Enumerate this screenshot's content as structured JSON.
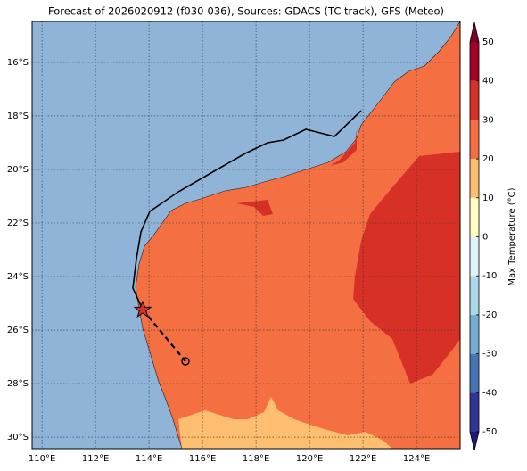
{
  "map": {
    "title": "Forecast of 2026020912 (f030-036), Sources: GDACS (TC track), GFS (Meteo)",
    "lonlim": [
      109.63,
      125.63
    ],
    "latlim": [
      -30.43,
      -14.47
    ],
    "lon_ticks": [
      {
        "value": 110,
        "label": "110°E"
      },
      {
        "value": 112,
        "label": "112°E"
      },
      {
        "value": 114,
        "label": "114°E"
      },
      {
        "value": 116,
        "label": "116°E"
      },
      {
        "value": 118,
        "label": "118°E"
      },
      {
        "value": 120,
        "label": "120°E"
      },
      {
        "value": 122,
        "label": "122°E"
      },
      {
        "value": 124,
        "label": "124°E"
      }
    ],
    "lat_ticks": [
      {
        "value": -16,
        "label": "16°S"
      },
      {
        "value": -18,
        "label": "18°S"
      },
      {
        "value": -20,
        "label": "20°S"
      },
      {
        "value": -22,
        "label": "22°S"
      },
      {
        "value": -24,
        "label": "24°S"
      },
      {
        "value": -26,
        "label": "26°S"
      },
      {
        "value": -28,
        "label": "28°S"
      },
      {
        "value": -30,
        "label": "30°S"
      }
    ],
    "grid": true,
    "colorbar": {
      "label": "Max Temperature (°C)",
      "lim": [
        -50,
        50
      ],
      "ticks": [
        -50,
        -40,
        -30,
        -20,
        -10,
        0,
        10,
        20,
        30,
        40,
        50
      ],
      "colors": [
        "#313695",
        "#4575b4",
        "#74add1",
        "#abd9e9",
        "#e0f3f8",
        "#ffffbf",
        "#fdbf6f",
        "#f46d43",
        "#d73027",
        "#a50026"
      ],
      "under_color": "#1f1a7a",
      "over_color": "#800026"
    }
  }
}
